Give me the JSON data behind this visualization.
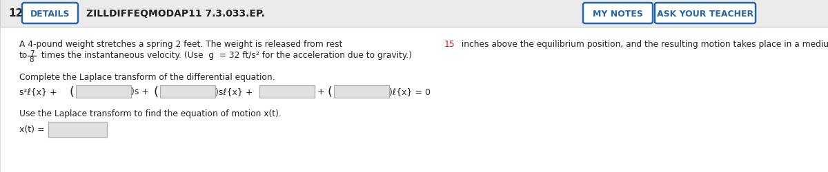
{
  "number": "12.",
  "details_btn": "DETAILS",
  "code": "ZILLDIFFEQMODAP11 7.3.033.EP.",
  "my_notes_btn": "MY NOTES",
  "ask_teacher_btn": "ASK YOUR TEACHER",
  "body_line1_pre": "A 4-pound weight stretches a spring 2 feet. The weight is released from rest ",
  "body_line1_highlight": "15",
  "body_line1_post": " inches above the equilibrium position, and the resulting motion takes place in a medium offering a damping force numerically equal",
  "body_line2_pre": "to ",
  "fraction_num": "7",
  "fraction_den": "8",
  "body_line2_post": " times the instantaneous velocity. (Use  g  = 32 ft/s² for the acceleration due to gravity.)",
  "laplace_label": "Complete the Laplace transform of the differential equation.",
  "motion_label": "Use the Laplace transform to find the equation of motion x(t).",
  "xt_label": "x(t) =",
  "bg_color": "#f0f0f0",
  "header_bg": "#ebebeb",
  "content_bg": "#ffffff",
  "blue_color": "#2666a8",
  "text_color": "#222222",
  "red_color": "#dd1111",
  "input_bg": "#e0e0e0",
  "input_border": "#aaaaaa",
  "border_line": "#cccccc"
}
